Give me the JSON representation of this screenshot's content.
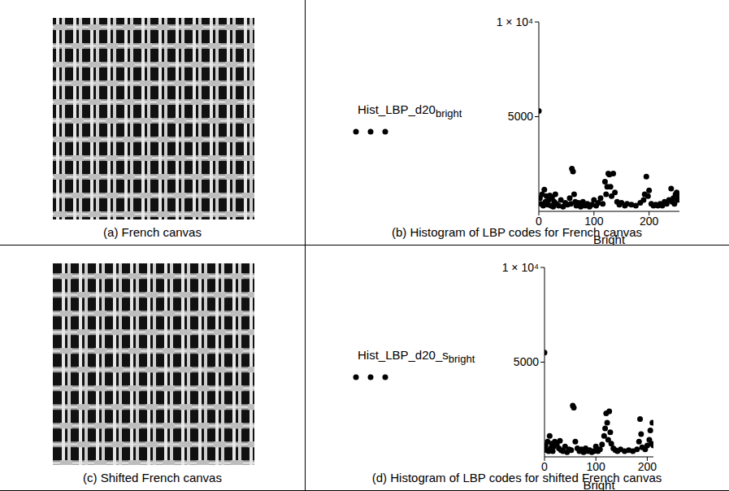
{
  "images": [
    {
      "caption": "(a) French canvas"
    },
    {
      "caption": "(c) Shifted French canvas"
    }
  ],
  "chart_data": [
    {
      "type": "scatter",
      "title": "(b) Histogram of LBP codes for French canvas",
      "ylabel": "Hist_LBP_d20",
      "ylabel_subscript": "bright",
      "xlabel": "Bright",
      "color": "#000000",
      "marker": "circle",
      "grid": false,
      "xlim": [
        0,
        255
      ],
      "xticks": [
        0,
        100,
        200
      ],
      "ylim": [
        0,
        10000
      ],
      "yticks": [
        5000,
        {
          "value": 10000,
          "label": "1 × 10⁴"
        }
      ],
      "x": [
        0,
        2,
        4,
        6,
        8,
        10,
        12,
        14,
        16,
        18,
        20,
        22,
        24,
        26,
        28,
        30,
        32,
        36,
        40,
        44,
        48,
        52,
        56,
        58,
        60,
        62,
        64,
        66,
        68,
        72,
        76,
        80,
        84,
        88,
        92,
        96,
        100,
        104,
        108,
        112,
        116,
        120,
        122,
        124,
        126,
        128,
        130,
        132,
        135,
        138,
        142,
        146,
        150,
        156,
        160,
        168,
        176,
        184,
        190,
        192,
        195,
        198,
        200,
        204,
        208,
        212,
        216,
        220,
        224,
        228,
        232,
        236,
        240,
        242,
        244,
        246,
        248,
        250,
        252,
        254,
        255
      ],
      "values": [
        5300,
        700,
        400,
        900,
        300,
        1150,
        500,
        800,
        350,
        600,
        840,
        300,
        700,
        250,
        500,
        900,
        400,
        300,
        600,
        250,
        450,
        350,
        700,
        400,
        2250,
        2100,
        900,
        500,
        300,
        450,
        250,
        500,
        300,
        400,
        250,
        350,
        600,
        300,
        450,
        700,
        400,
        1570,
        900,
        1300,
        2000,
        1940,
        1300,
        800,
        2000,
        1000,
        500,
        350,
        450,
        300,
        400,
        350,
        300,
        450,
        600,
        900,
        1830,
        800,
        1100,
        400,
        300,
        350,
        300,
        400,
        300,
        500,
        400,
        600,
        1200,
        500,
        700,
        400,
        900,
        1000,
        600,
        800,
        700
      ]
    },
    {
      "type": "scatter",
      "title": "(d) Histogram of LBP codes for shifted French canvas",
      "ylabel": "Hist_LBP_d20_s",
      "ylabel_subscript": "bright",
      "xlabel": "Bright",
      "color": "#000000",
      "marker": "circle",
      "grid": false,
      "xlim": [
        0,
        212
      ],
      "xticks": [
        0,
        100,
        200
      ],
      "ylim": [
        0,
        10000
      ],
      "yticks": [
        5000,
        {
          "value": 10000,
          "label": "1 × 10⁴"
        }
      ],
      "x": [
        0,
        2,
        4,
        6,
        8,
        10,
        12,
        14,
        16,
        18,
        20,
        24,
        28,
        30,
        32,
        36,
        40,
        44,
        48,
        52,
        55,
        57,
        60,
        64,
        68,
        72,
        76,
        80,
        84,
        88,
        92,
        96,
        100,
        104,
        108,
        112,
        116,
        118,
        120,
        122,
        124,
        126,
        128,
        130,
        134,
        138,
        142,
        148,
        156,
        164,
        172,
        180,
        184,
        186,
        188,
        190,
        196,
        200,
        204,
        206,
        208,
        210,
        212
      ],
      "values": [
        5500,
        600,
        350,
        800,
        300,
        1100,
        450,
        700,
        300,
        550,
        800,
        650,
        450,
        850,
        350,
        300,
        550,
        250,
        400,
        350,
        2700,
        2600,
        800,
        450,
        300,
        400,
        250,
        450,
        300,
        350,
        250,
        300,
        550,
        300,
        400,
        650,
        1100,
        1500,
        2300,
        1800,
        900,
        2400,
        1300,
        700,
        450,
        350,
        300,
        400,
        300,
        350,
        300,
        400,
        800,
        2000,
        1200,
        500,
        400,
        600,
        900,
        1400,
        700,
        1800,
        600
      ]
    }
  ]
}
